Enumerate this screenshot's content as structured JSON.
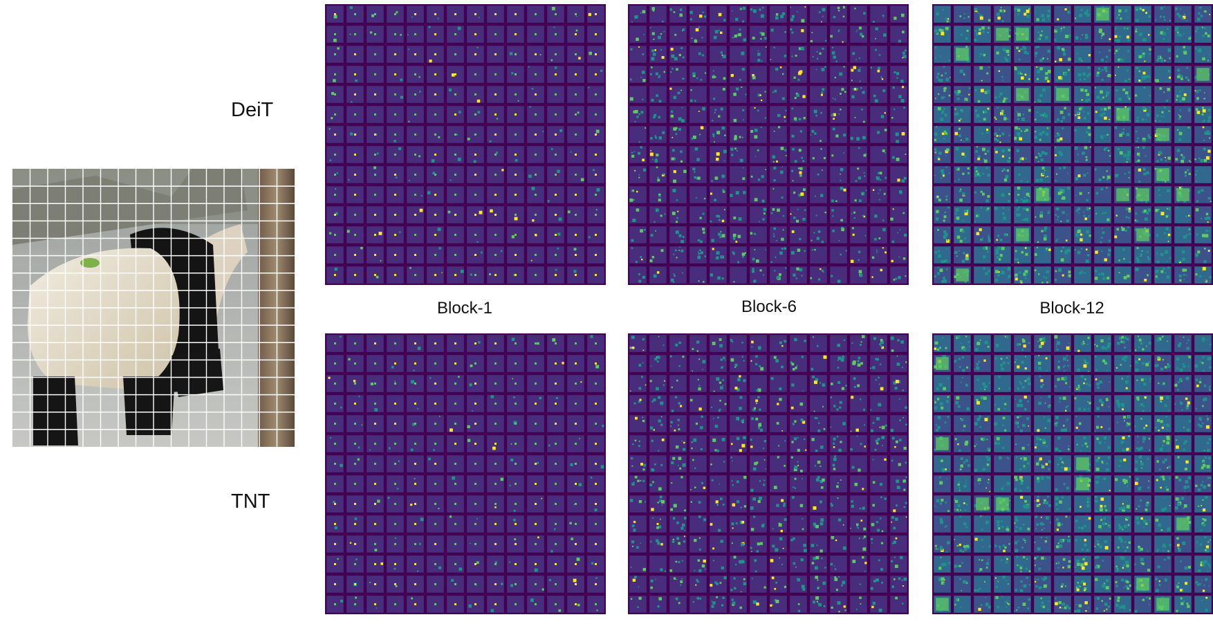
{
  "figure": {
    "rows": [
      {
        "label": "DeiT"
      },
      {
        "label": "TNT"
      }
    ],
    "blocks": [
      {
        "label": "Block-1"
      },
      {
        "label": "Block-6"
      },
      {
        "label": "Block-12"
      }
    ],
    "grid_size": 14,
    "colors": {
      "background_cell": "#440154",
      "cell_fill": "#472d7b",
      "low": "#3b528b",
      "mid": "#21918c",
      "high": "#5ec962",
      "peak": "#fde725",
      "grid_line": "#ffffff"
    },
    "input_image": {
      "icon": "panda-photo",
      "patch_grid": 16
    }
  }
}
